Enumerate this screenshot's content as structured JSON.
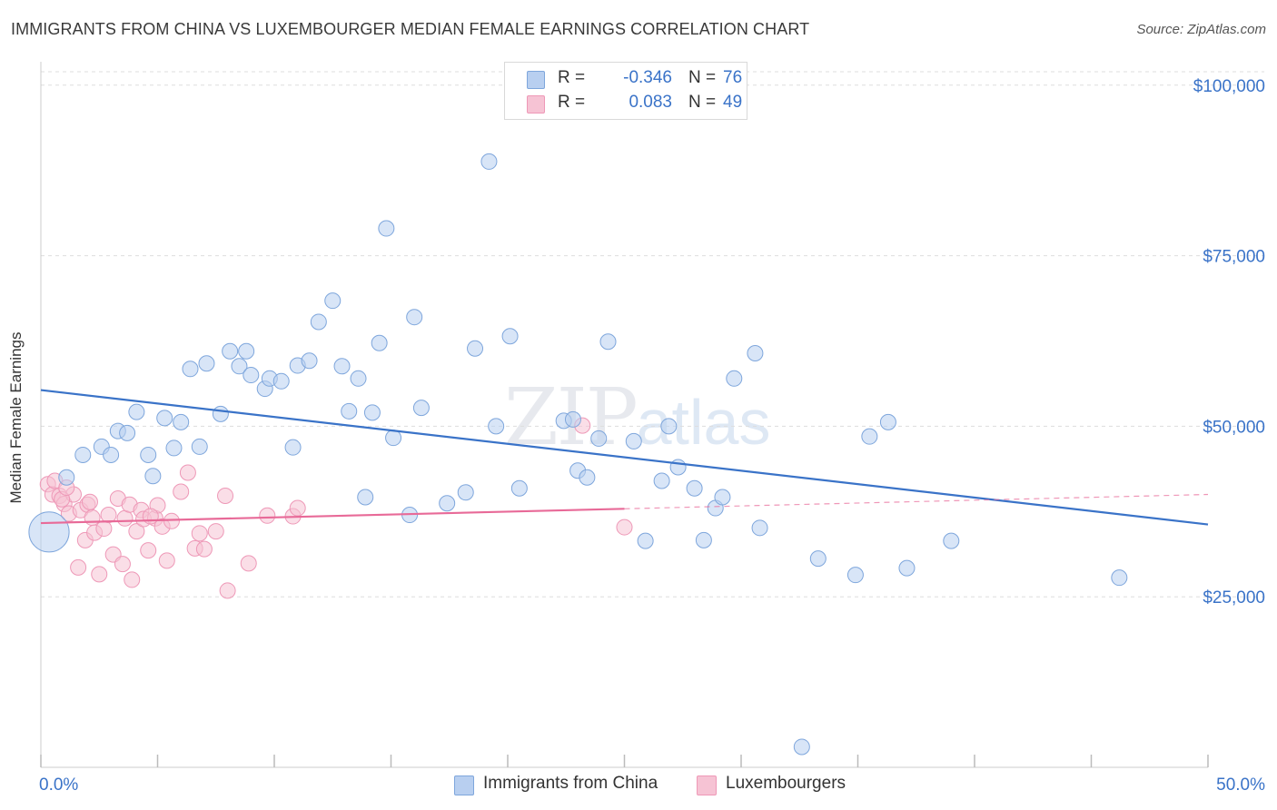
{
  "title": "IMMIGRANTS FROM CHINA VS LUXEMBOURGER MEDIAN FEMALE EARNINGS CORRELATION CHART",
  "source": "Source: ZipAtlas.com",
  "watermark": {
    "zip": "ZIP",
    "atlas": "atlas"
  },
  "colors": {
    "blue": "#3a73c8",
    "blue_fill": "#b8cff0",
    "blue_stroke": "#7ea6dc",
    "pink": "#e86a98",
    "pink_fill": "#f6c3d4",
    "pink_stroke": "#ee98b7",
    "grid": "#dddddd",
    "tick_text": "#3a73c8"
  },
  "stats": [
    {
      "series": "Immigrants from China",
      "r_label": "R =",
      "r_value": "-0.346",
      "n_label": "N =",
      "n_value": "76"
    },
    {
      "series": "Luxembourgers",
      "r_label": "R =",
      "r_value": "0.083",
      "n_label": "N =",
      "n_value": "49"
    }
  ],
  "legend": [
    "Immigrants from China",
    "Luxembourgers"
  ],
  "chart_data": {
    "type": "scatter",
    "title": "IMMIGRANTS FROM CHINA VS LUXEMBOURGER MEDIAN FEMALE EARNINGS CORRELATION CHART",
    "xlabel": "",
    "ylabel": "Median Female Earnings",
    "xlim": [
      0,
      50
    ],
    "ylim": [
      0,
      102500
    ],
    "x_tick_labels": {
      "min": "0.0%",
      "max": "50.0%"
    },
    "y_ticks": [
      25000,
      50000,
      75000,
      100000
    ],
    "y_tick_labels": [
      "$25,000",
      "$50,000",
      "$75,000",
      "$100,000"
    ],
    "series": [
      {
        "name": "Immigrants from China",
        "color": "blue",
        "trend": {
          "x": [
            0,
            50
          ],
          "y": [
            55300,
            35600
          ]
        },
        "points": [
          [
            0.35,
            34500,
            2.6
          ],
          [
            1.1,
            42500,
            1
          ],
          [
            1.8,
            45800,
            1
          ],
          [
            2.6,
            47000,
            1
          ],
          [
            3.0,
            45800,
            1
          ],
          [
            3.3,
            49300,
            1
          ],
          [
            3.7,
            49000,
            1
          ],
          [
            4.1,
            52100,
            1
          ],
          [
            4.6,
            45800,
            1
          ],
          [
            4.8,
            42700,
            1
          ],
          [
            5.3,
            51200,
            1
          ],
          [
            5.7,
            46800,
            1
          ],
          [
            6.0,
            50600,
            1
          ],
          [
            6.4,
            58400,
            1
          ],
          [
            6.8,
            47000,
            1
          ],
          [
            7.1,
            59200,
            1
          ],
          [
            7.7,
            51800,
            1
          ],
          [
            8.1,
            61000,
            1
          ],
          [
            8.5,
            58800,
            1
          ],
          [
            8.8,
            61000,
            1
          ],
          [
            9.0,
            57500,
            1
          ],
          [
            9.6,
            55500,
            1
          ],
          [
            9.8,
            57000,
            1
          ],
          [
            10.3,
            56600,
            1
          ],
          [
            10.8,
            46900,
            1
          ],
          [
            11.0,
            58900,
            1
          ],
          [
            11.5,
            59600,
            1
          ],
          [
            11.9,
            65300,
            1
          ],
          [
            12.5,
            68400,
            1
          ],
          [
            12.9,
            58800,
            1
          ],
          [
            13.2,
            52200,
            1
          ],
          [
            13.6,
            57000,
            1
          ],
          [
            13.9,
            39600,
            1
          ],
          [
            14.2,
            52000,
            1
          ],
          [
            14.5,
            62200,
            1
          ],
          [
            14.8,
            79000,
            1
          ],
          [
            15.1,
            48300,
            1
          ],
          [
            15.8,
            37000,
            1
          ],
          [
            16.0,
            66000,
            1
          ],
          [
            16.3,
            52700,
            1
          ],
          [
            17.4,
            38700,
            1
          ],
          [
            18.2,
            40300,
            1
          ],
          [
            18.6,
            61400,
            1
          ],
          [
            19.2,
            88800,
            1
          ],
          [
            19.5,
            50000,
            1
          ],
          [
            20.1,
            63200,
            1
          ],
          [
            20.5,
            40900,
            1
          ],
          [
            22.4,
            50800,
            1
          ],
          [
            22.8,
            51000,
            1
          ],
          [
            23.0,
            43500,
            1
          ],
          [
            23.4,
            42500,
            1
          ],
          [
            23.9,
            48200,
            1
          ],
          [
            24.3,
            62400,
            1
          ],
          [
            25.4,
            47800,
            1
          ],
          [
            25.9,
            33200,
            1
          ],
          [
            26.6,
            42000,
            1
          ],
          [
            26.9,
            50000,
            1
          ],
          [
            27.3,
            44000,
            1
          ],
          [
            28.0,
            40900,
            1
          ],
          [
            28.4,
            33300,
            1
          ],
          [
            28.9,
            38000,
            1
          ],
          [
            29.2,
            39600,
            1
          ],
          [
            29.7,
            57000,
            1
          ],
          [
            30.6,
            60700,
            1
          ],
          [
            30.8,
            35100,
            1
          ],
          [
            32.6,
            3000,
            1
          ],
          [
            33.3,
            30600,
            1
          ],
          [
            34.9,
            28200,
            1
          ],
          [
            35.5,
            48500,
            1
          ],
          [
            36.3,
            50600,
            1
          ],
          [
            37.1,
            29200,
            1
          ],
          [
            39.0,
            33200,
            1
          ],
          [
            46.2,
            27800,
            1
          ]
        ]
      },
      {
        "name": "Luxembourgers",
        "color": "pink",
        "trend": {
          "x": [
            0,
            25
          ],
          "y": [
            35800,
            37900
          ]
        },
        "trend_dashed": {
          "x": [
            25,
            50
          ],
          "y": [
            37900,
            40000
          ]
        },
        "points": [
          [
            0.3,
            41500,
            1
          ],
          [
            0.5,
            40000,
            1
          ],
          [
            0.8,
            39800,
            1
          ],
          [
            1.0,
            38600,
            1
          ],
          [
            1.2,
            37200,
            1
          ],
          [
            1.4,
            40000,
            1
          ],
          [
            1.6,
            29300,
            1
          ],
          [
            1.7,
            37700,
            1
          ],
          [
            1.9,
            33300,
            1
          ],
          [
            2.0,
            38500,
            1
          ],
          [
            2.2,
            36600,
            1
          ],
          [
            2.3,
            34400,
            1
          ],
          [
            2.5,
            28300,
            1
          ],
          [
            2.7,
            35000,
            1
          ],
          [
            2.9,
            37000,
            1
          ],
          [
            3.1,
            31200,
            1
          ],
          [
            3.3,
            39400,
            1
          ],
          [
            3.5,
            29800,
            1
          ],
          [
            3.6,
            36500,
            1
          ],
          [
            3.8,
            38500,
            1
          ],
          [
            3.9,
            27500,
            1
          ],
          [
            4.1,
            34600,
            1
          ],
          [
            4.3,
            37700,
            1
          ],
          [
            4.4,
            36400,
            1
          ],
          [
            4.6,
            31800,
            1
          ],
          [
            4.9,
            36500,
            1
          ],
          [
            5.0,
            38400,
            1
          ],
          [
            5.2,
            35300,
            1
          ],
          [
            5.4,
            30300,
            1
          ],
          [
            5.6,
            36100,
            1
          ],
          [
            6.0,
            40400,
            1
          ],
          [
            6.3,
            43200,
            1
          ],
          [
            6.6,
            32100,
            1
          ],
          [
            6.8,
            34300,
            1
          ],
          [
            7.0,
            32000,
            1
          ],
          [
            7.5,
            34600,
            1
          ],
          [
            7.9,
            39800,
            1
          ],
          [
            8.0,
            25900,
            1
          ],
          [
            8.9,
            29900,
            1
          ],
          [
            9.7,
            36900,
            1
          ],
          [
            10.8,
            36800,
            1
          ],
          [
            11.0,
            38000,
            1
          ],
          [
            23.2,
            50100,
            1
          ],
          [
            25.0,
            35200,
            1
          ],
          [
            0.6,
            42000,
            1
          ],
          [
            0.9,
            39300,
            1
          ],
          [
            1.1,
            41000,
            1
          ],
          [
            2.1,
            38900,
            1
          ],
          [
            4.7,
            36800,
            1
          ]
        ]
      }
    ]
  }
}
